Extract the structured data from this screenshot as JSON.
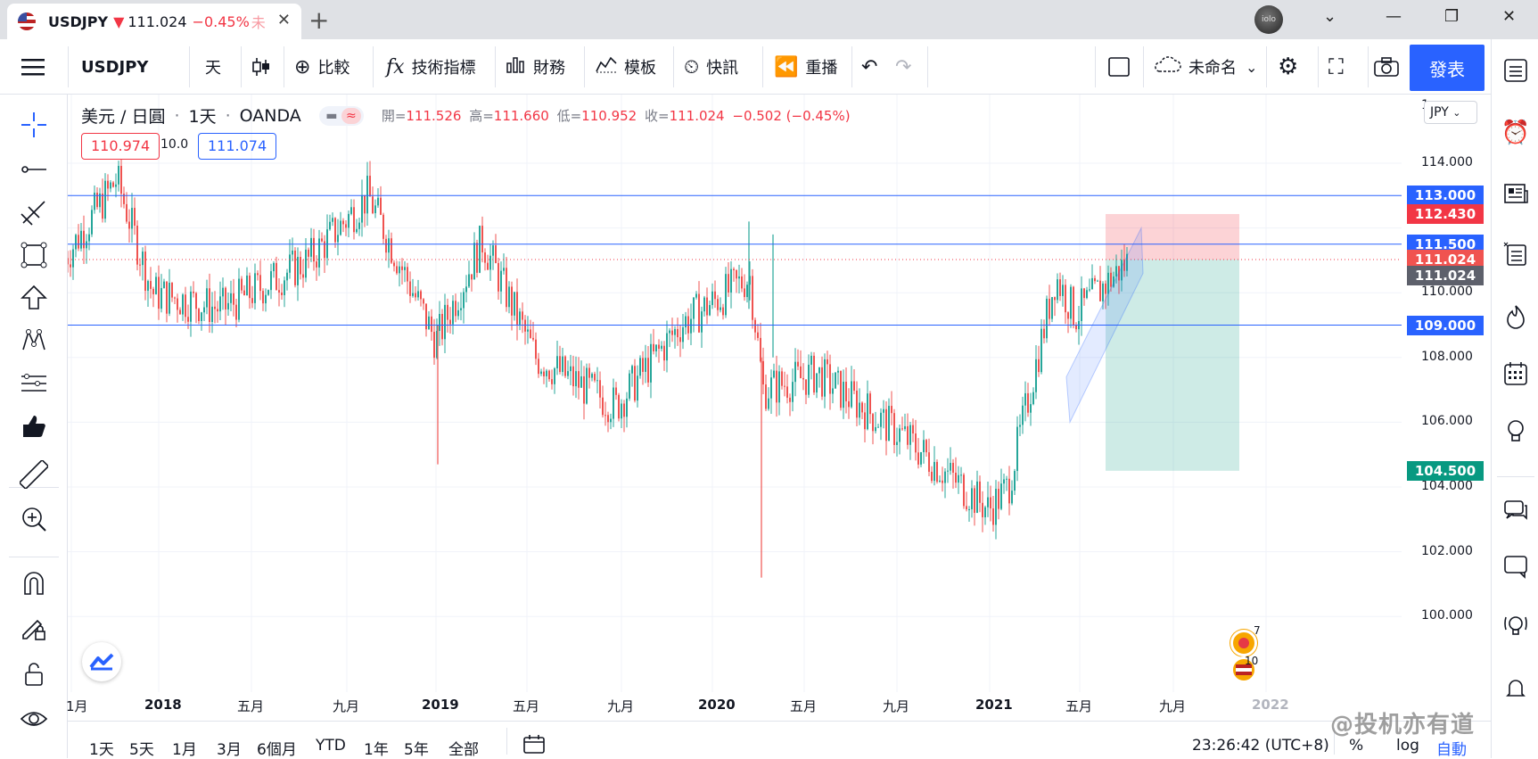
{
  "tab": {
    "symbol": "USDJPY",
    "arrow": "▼",
    "price": "111.024",
    "change": "−0.45%",
    "fade": "未",
    "close": "✕",
    "new_tab": "+",
    "avatar": "iolo Sach"
  },
  "window": {
    "chevron": "⌄",
    "minimize": "—",
    "restore": "❐",
    "close": "✕"
  },
  "toolbar": {
    "symbol": "USDJPY",
    "interval": "天",
    "compare": "比較",
    "indicators": "技術指標",
    "financials": "財務",
    "templates": "模板",
    "alert": "快訊",
    "replay": "重播",
    "layout_name": "未命名",
    "publish": "發表"
  },
  "legend": {
    "title": "美元 / 日圓",
    "interval": "1天",
    "source": "OANDA",
    "dot": "·",
    "open_label": "開=",
    "open": "111.526",
    "high_label": "高=",
    "high": "111.660",
    "low_label": "低=",
    "low": "110.952",
    "close_label": "收=",
    "close": "111.024",
    "change": "−0.502 (−0.45%)",
    "bid": "110.974",
    "spread": "10.0",
    "ask": "111.074"
  },
  "currency_button": "JPY",
  "y_axis": {
    "ticks": [
      "114.000",
      "110.000",
      "108.000",
      "106.000",
      "104.000",
      "102.000",
      "100.000"
    ],
    "top_partial": "1"
  },
  "price_tags": [
    {
      "label": "113.000",
      "color": "#2962ff"
    },
    {
      "label": "112.430",
      "color": "#f23645"
    },
    {
      "label": "111.500",
      "color": "#2962ff"
    },
    {
      "label": "111.024",
      "color": "#f05350"
    },
    {
      "label": "111.024",
      "color": "#5d606b"
    },
    {
      "label": "109.000",
      "color": "#2962ff"
    },
    {
      "label": "104.500",
      "color": "#089981"
    }
  ],
  "x_axis": [
    "1月",
    "2018",
    "五月",
    "九月",
    "2019",
    "五月",
    "九月",
    "2020",
    "五月",
    "九月",
    "2021",
    "五月",
    "九月",
    "2022"
  ],
  "events": {
    "top": "7",
    "bottom": "10"
  },
  "bottom": {
    "ranges": [
      "1天",
      "5天",
      "1月",
      "3月",
      "6個月",
      "YTD",
      "1年",
      "5年",
      "全部"
    ],
    "time": "23:26:42 (UTC+8)",
    "percent": "%",
    "log": "log",
    "auto": "自動"
  },
  "watermark": "@投机亦有道",
  "colors": {
    "up": "#26a69a",
    "down": "#ef5350",
    "accent": "#2962ff",
    "level_line": "#2962ff",
    "stop_zone": "#f2364540",
    "target_zone": "#08998140"
  },
  "chart_data": {
    "type": "candlestick",
    "symbol": "USDJPY",
    "interval": "1D",
    "ylim": [
      99.5,
      116
    ],
    "x": [
      "2017-12",
      "2018-01",
      "2018-03",
      "2018-05",
      "2018-07",
      "2018-10",
      "2019-01",
      "2019-04",
      "2019-06",
      "2019-09",
      "2019-12",
      "2020-02",
      "2020-03",
      "2020-06",
      "2020-09",
      "2020-12",
      "2021-01",
      "2021-03",
      "2021-05",
      "2021-06"
    ],
    "close": [
      111.0,
      113.5,
      110.0,
      109.5,
      111.0,
      113.0,
      108.5,
      111.6,
      108.0,
      106.5,
      109.0,
      110.5,
      107.0,
      107.5,
      105.5,
      103.3,
      104.0,
      110.5,
      109.3,
      111.0
    ],
    "horizontal_levels": [
      113.0,
      111.5,
      109.0
    ],
    "position": {
      "entry": 111.024,
      "stop": 112.43,
      "target": 104.5
    }
  }
}
